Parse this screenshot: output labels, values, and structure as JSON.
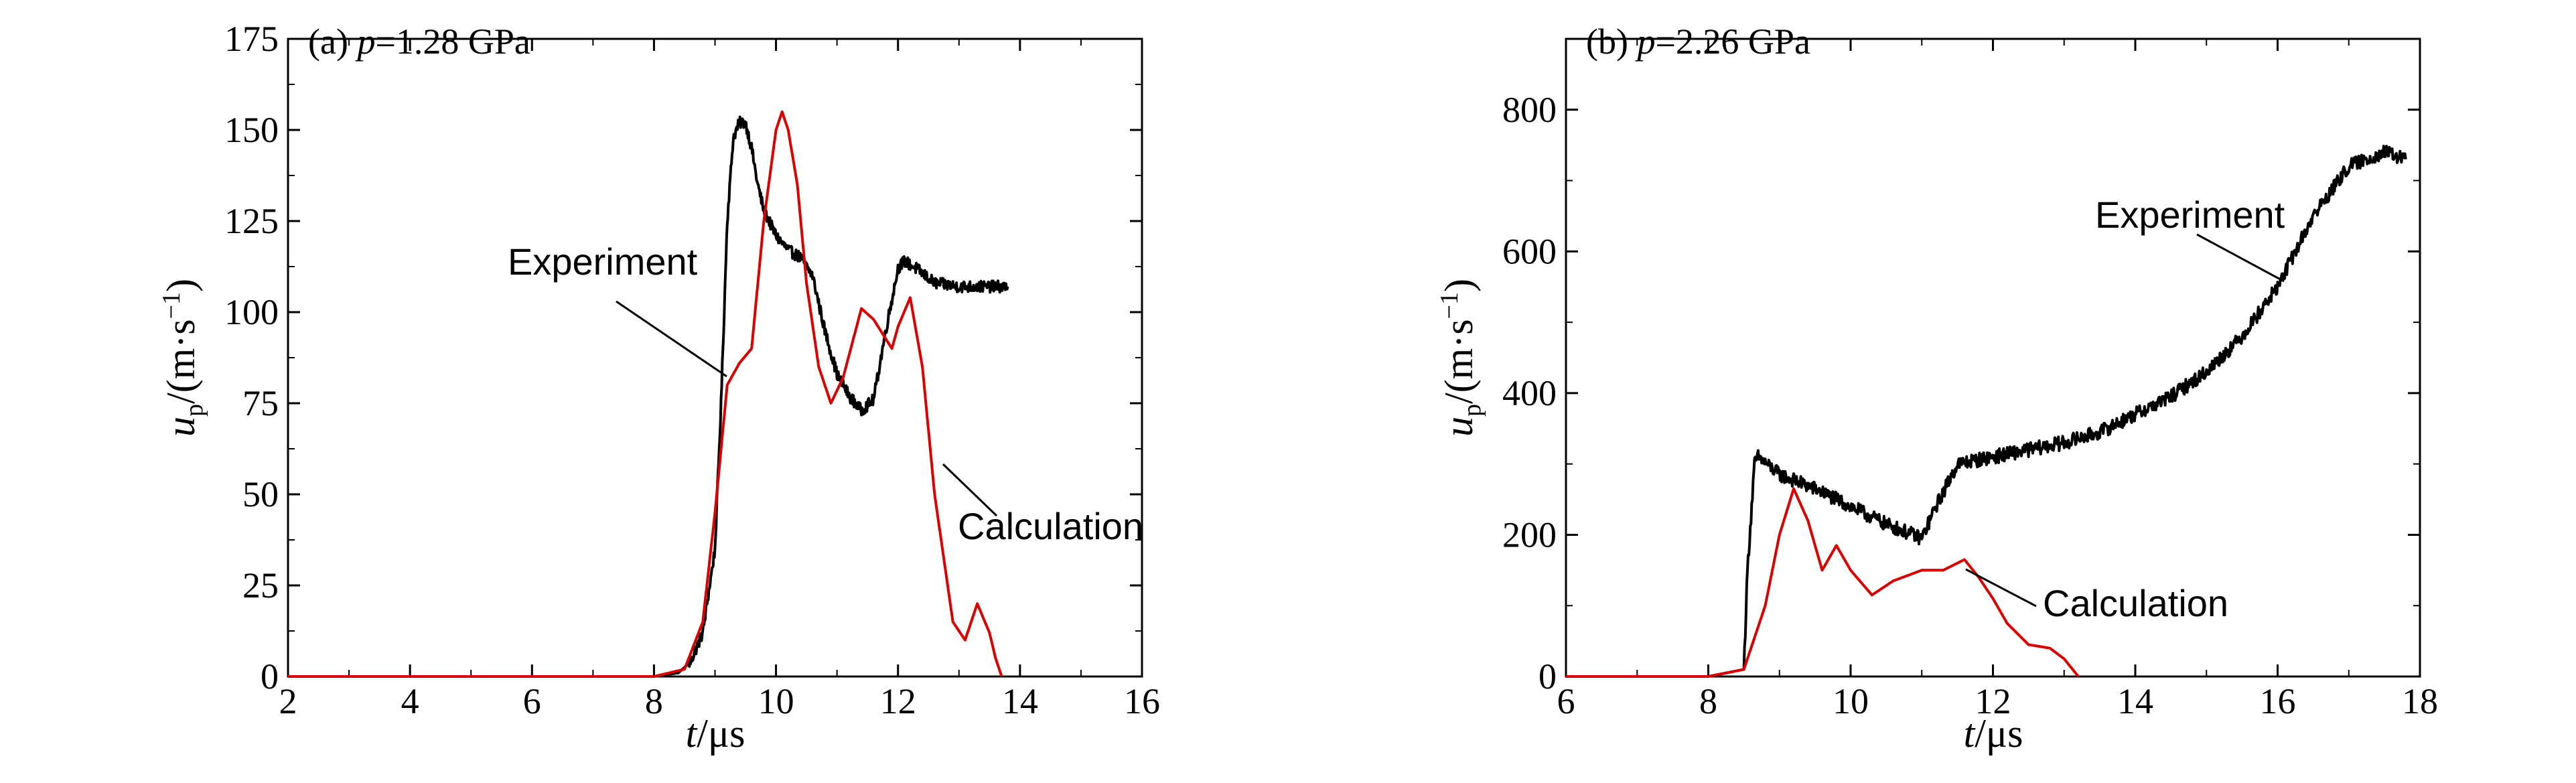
{
  "chart_data": [
    {
      "type": "line",
      "panel_label": "(a) ",
      "title_var": "p",
      "title_rest": "=1.28 GPa",
      "xlabel_var": "t",
      "xlabel_unit": "/μs",
      "ylabel_var": "u",
      "ylabel_sub": "p",
      "ylabel_unit_a": "/(m·s",
      "ylabel_sup": "−1",
      "ylabel_unit_b": ")",
      "xlim": [
        2,
        16
      ],
      "ylim": [
        0,
        175
      ],
      "xticks": [
        "2",
        "4",
        "6",
        "8",
        "10",
        "12",
        "14",
        "16"
      ],
      "yticks": [
        "0",
        "25",
        "50",
        "75",
        "100",
        "125",
        "150",
        "175"
      ],
      "grid": false,
      "series": [
        {
          "name": "Experiment",
          "color": "#000000",
          "x": [
            2,
            8.0,
            8.4,
            8.6,
            8.8,
            9.0,
            9.1,
            9.2,
            9.3,
            9.4,
            9.5,
            9.6,
            9.7,
            9.8,
            10.0,
            10.2,
            10.4,
            10.6,
            10.8,
            11.0,
            11.2,
            11.4,
            11.6,
            11.8,
            12.0,
            12.1,
            12.3,
            12.6,
            13.0,
            13.4,
            13.8
          ],
          "y": [
            0,
            0,
            1,
            4,
            12,
            35,
            75,
            125,
            148,
            152,
            152,
            145,
            135,
            128,
            121,
            117,
            115,
            110,
            95,
            83,
            77,
            73,
            76,
            95,
            112,
            114,
            112,
            108,
            107,
            107,
            107
          ]
        },
        {
          "name": "Calculation",
          "color": "#dd0000",
          "x": [
            2,
            8.0,
            8.5,
            8.8,
            9.0,
            9.2,
            9.4,
            9.6,
            9.8,
            10.0,
            10.1,
            10.2,
            10.35,
            10.5,
            10.7,
            10.9,
            11.1,
            11.4,
            11.6,
            11.9,
            12.0,
            12.2,
            12.4,
            12.6,
            12.9,
            13.1,
            13.3,
            13.5,
            13.6,
            13.7
          ],
          "y": [
            0,
            0,
            2,
            15,
            45,
            80,
            86,
            90,
            125,
            150,
            155,
            150,
            135,
            108,
            85,
            75,
            82,
            101,
            98,
            90,
            96,
            104,
            85,
            50,
            15,
            10,
            20,
            12,
            5,
            0
          ]
        }
      ],
      "annotations": [
        {
          "text": "Experiment"
        },
        {
          "text": "Calculation"
        }
      ]
    },
    {
      "type": "line",
      "panel_label": "(b) ",
      "title_var": "p",
      "title_rest": "=2.26 GPa",
      "xlabel_var": "t",
      "xlabel_unit": "/μs",
      "ylabel_var": "u",
      "ylabel_sub": "p",
      "ylabel_unit_a": "/(m·s",
      "ylabel_sup": "−1",
      "ylabel_unit_b": ")",
      "xlim": [
        6,
        18
      ],
      "ylim": [
        0,
        900
      ],
      "xticks": [
        "6",
        "8",
        "10",
        "12",
        "14",
        "16",
        "18"
      ],
      "yticks": [
        "0",
        "200",
        "400",
        "600",
        "800"
      ],
      "grid": false,
      "series": [
        {
          "name": "Experiment",
          "color": "#000000",
          "x": [
            8.0,
            8.5,
            8.55,
            8.65,
            8.7,
            9.0,
            9.5,
            10.0,
            10.5,
            11.0,
            11.2,
            11.5,
            12.0,
            12.5,
            13.0,
            13.5,
            14.0,
            14.5,
            15.0,
            15.5,
            16.0,
            16.5,
            17.0,
            17.5,
            17.8
          ],
          "y": [
            0,
            10,
            150,
            300,
            310,
            285,
            265,
            240,
            215,
            195,
            240,
            300,
            310,
            320,
            330,
            345,
            370,
            395,
            430,
            480,
            550,
            650,
            720,
            740,
            730
          ]
        },
        {
          "name": "Calculation",
          "color": "#dd0000",
          "x": [
            6,
            8.0,
            8.5,
            8.8,
            9.0,
            9.2,
            9.4,
            9.6,
            9.8,
            10.0,
            10.3,
            10.6,
            11.0,
            11.3,
            11.6,
            11.8,
            12.0,
            12.2,
            12.5,
            12.8,
            13.0,
            13.2
          ],
          "y": [
            0,
            0,
            10,
            100,
            200,
            265,
            220,
            150,
            185,
            150,
            115,
            135,
            150,
            150,
            165,
            140,
            110,
            75,
            45,
            40,
            25,
            0
          ]
        }
      ],
      "annotations": [
        {
          "text": "Experiment"
        },
        {
          "text": "Calculation"
        }
      ]
    }
  ]
}
